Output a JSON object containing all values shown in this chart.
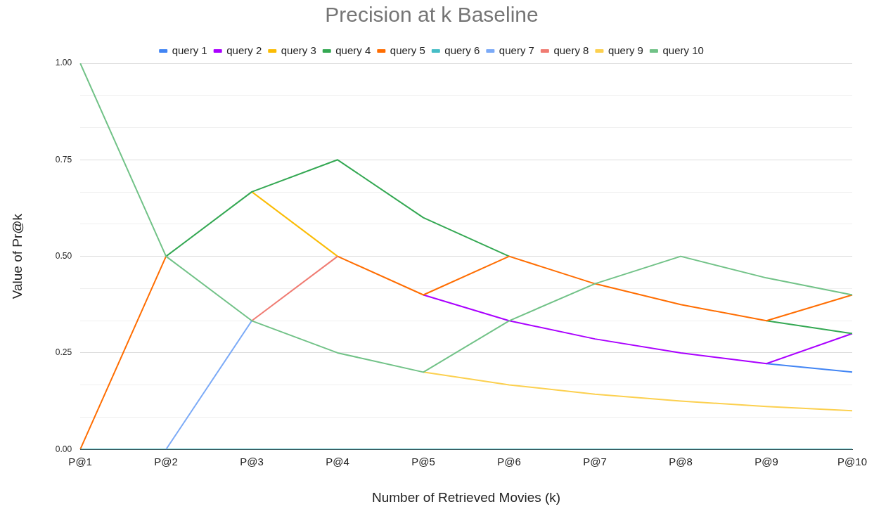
{
  "chart_data": {
    "type": "line",
    "title": "Precision at k Baseline",
    "xlabel": "Number of Retrieved Movies (k)",
    "ylabel": "Value of Pr@k",
    "categories": [
      "P@1",
      "P@2",
      "P@3",
      "P@4",
      "P@5",
      "P@6",
      "P@7",
      "P@8",
      "P@9",
      "P@10"
    ],
    "series": [
      {
        "name": "query 1",
        "color": "#4285f4",
        "values": [
          null,
          null,
          null,
          null,
          null,
          null,
          null,
          null,
          0.222,
          0.2
        ]
      },
      {
        "name": "query 2",
        "color": "#aa00ff",
        "values": [
          null,
          null,
          null,
          null,
          0.4,
          0.333,
          0.286,
          0.25,
          0.222,
          0.3
        ]
      },
      {
        "name": "query 3",
        "color": "#fbbc04",
        "values": [
          null,
          null,
          0.667,
          0.5,
          null,
          null,
          null,
          null,
          null,
          null
        ]
      },
      {
        "name": "query 4",
        "color": "#34a853",
        "values": [
          null,
          0.5,
          0.667,
          0.75,
          0.6,
          0.5,
          null,
          null,
          0.333,
          0.3
        ]
      },
      {
        "name": "query 5",
        "color": "#ff6d01",
        "values": [
          0,
          0.5,
          null,
          0.5,
          0.4,
          0.5,
          0.429,
          0.375,
          0.333,
          0.4
        ]
      },
      {
        "name": "query 6",
        "color": "#46bdc6",
        "values": [
          0,
          0,
          0,
          0,
          0,
          0,
          0,
          0,
          0,
          0
        ]
      },
      {
        "name": "query 7",
        "color": "#7baaf7",
        "values": [
          null,
          0,
          0.333,
          null,
          null,
          null,
          null,
          null,
          null,
          null
        ]
      },
      {
        "name": "query 8",
        "color": "#f07b72",
        "values": [
          null,
          null,
          0.333,
          0.5,
          null,
          null,
          null,
          null,
          null,
          null
        ]
      },
      {
        "name": "query 9",
        "color": "#fcd04f",
        "values": [
          null,
          null,
          null,
          null,
          0.2,
          0.167,
          0.143,
          0.125,
          0.111,
          0.1
        ]
      },
      {
        "name": "query 10",
        "color": "#71c287",
        "values": [
          1,
          0.5,
          0.333,
          0.25,
          0.2,
          0.333,
          0.429,
          0.5,
          0.444,
          0.4
        ]
      }
    ],
    "ylim": [
      0,
      1
    ],
    "yticks": [
      {
        "value": 0,
        "label": "0.00"
      },
      {
        "value": 0.0833,
        "label": null
      },
      {
        "value": 0.1667,
        "label": null
      },
      {
        "value": 0.25,
        "label": "0.25"
      },
      {
        "value": 0.3333,
        "label": null
      },
      {
        "value": 0.4167,
        "label": null
      },
      {
        "value": 0.5,
        "label": "0.50"
      },
      {
        "value": 0.5833,
        "label": null
      },
      {
        "value": 0.6667,
        "label": null
      },
      {
        "value": 0.75,
        "label": "0.75"
      },
      {
        "value": 0.8333,
        "label": null
      },
      {
        "value": 0.9167,
        "label": null
      },
      {
        "value": 1,
        "label": "1.00"
      }
    ],
    "grid": "y",
    "legend": "top",
    "marker": "none",
    "line_style": "solid"
  }
}
